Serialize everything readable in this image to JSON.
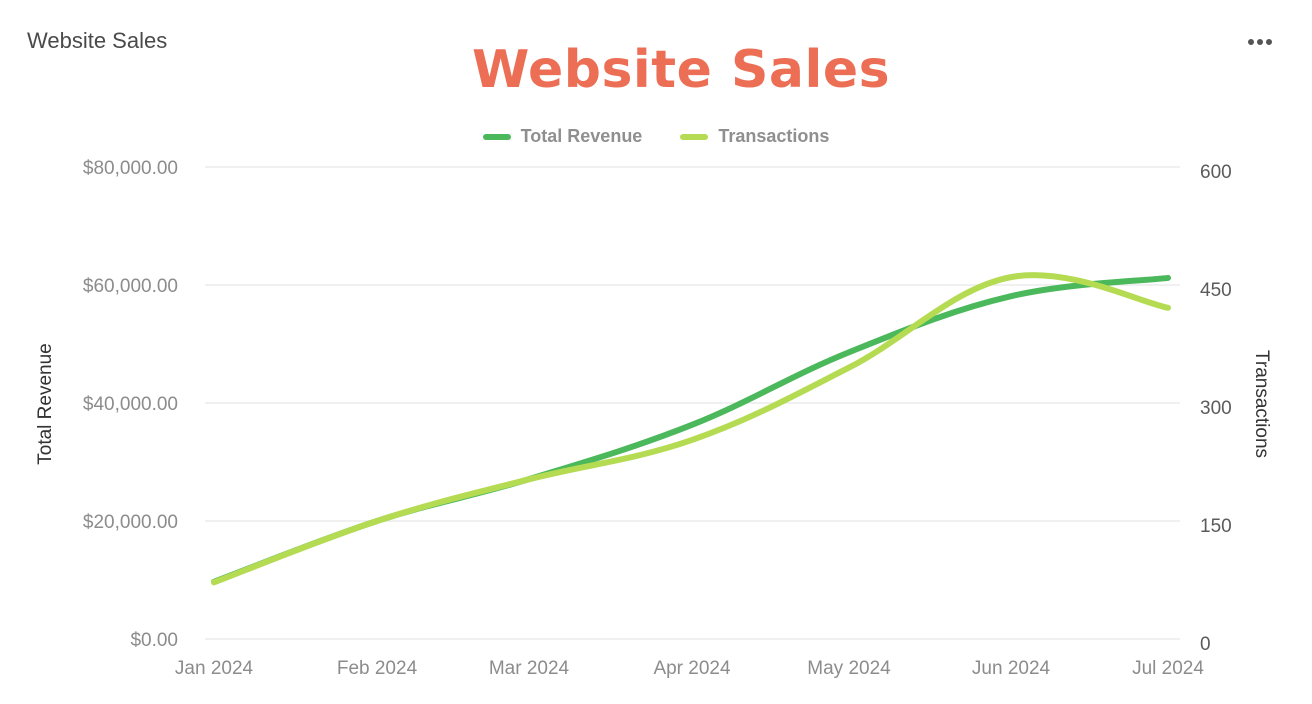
{
  "card": {
    "title": "Website Sales",
    "menu_icon": "more-horizontal-icon"
  },
  "colors": {
    "title": "#ec6e55",
    "total_revenue": "#4cb85c",
    "transactions": "#b4db52",
    "grid": "#ececec",
    "tick_text": "#8c8c8c"
  },
  "chart_data": {
    "type": "line",
    "title": "Website Sales",
    "categories": [
      "Jan 2024",
      "Feb 2024",
      "Mar 2024",
      "Apr 2024",
      "May 2024",
      "Jun 2024",
      "Jul 2024"
    ],
    "series": [
      {
        "name": "Total Revenue",
        "axis": "left",
        "color": "#4cb85c",
        "values": [
          9700,
          20000,
          27100,
          36300,
          48600,
          58100,
          61200
        ]
      },
      {
        "name": "Transactions",
        "axis": "right",
        "color": "#b4db52",
        "values": [
          72,
          150,
          203,
          253,
          345,
          460,
          421
        ]
      }
    ],
    "xlabel": "",
    "ylabel": "Total Revenue",
    "y2label": "Transactions",
    "ylim": [
      0,
      80000
    ],
    "y2lim": [
      0,
      600
    ],
    "yticks": [
      "$0.00",
      "$20,000.00",
      "$40,000.00",
      "$60,000.00",
      "$80,000.00"
    ],
    "y2ticks": [
      "0",
      "150",
      "300",
      "450",
      "600"
    ],
    "grid": true,
    "legend_position": "top",
    "smooth": true
  }
}
